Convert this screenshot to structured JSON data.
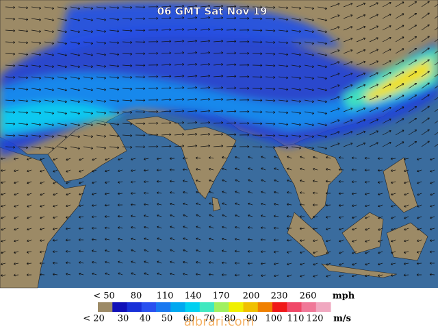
{
  "title": "06 GMT Sat Nov 19",
  "legend": {
    "mph_labels": [
      "< 50",
      "80",
      "110",
      "140",
      "170",
      "200",
      "230",
      "260"
    ],
    "mph_unit": "mph",
    "ms_labels": [
      "< 20",
      "30",
      "40",
      "50",
      "60",
      "70",
      "80",
      "90",
      "100",
      "110",
      "120"
    ],
    "ms_unit": "m/s",
    "colors": [
      "#9c8a66",
      "#1010b8",
      "#1830d8",
      "#2850f0",
      "#1878f0",
      "#00a8f0",
      "#00d0f0",
      "#40e8c0",
      "#a0f060",
      "#f0f000",
      "#f0c000",
      "#f08000",
      "#f01818",
      "#f04868",
      "#f07898",
      "#f0a8c0"
    ]
  },
  "watermark": "albrari.com"
}
